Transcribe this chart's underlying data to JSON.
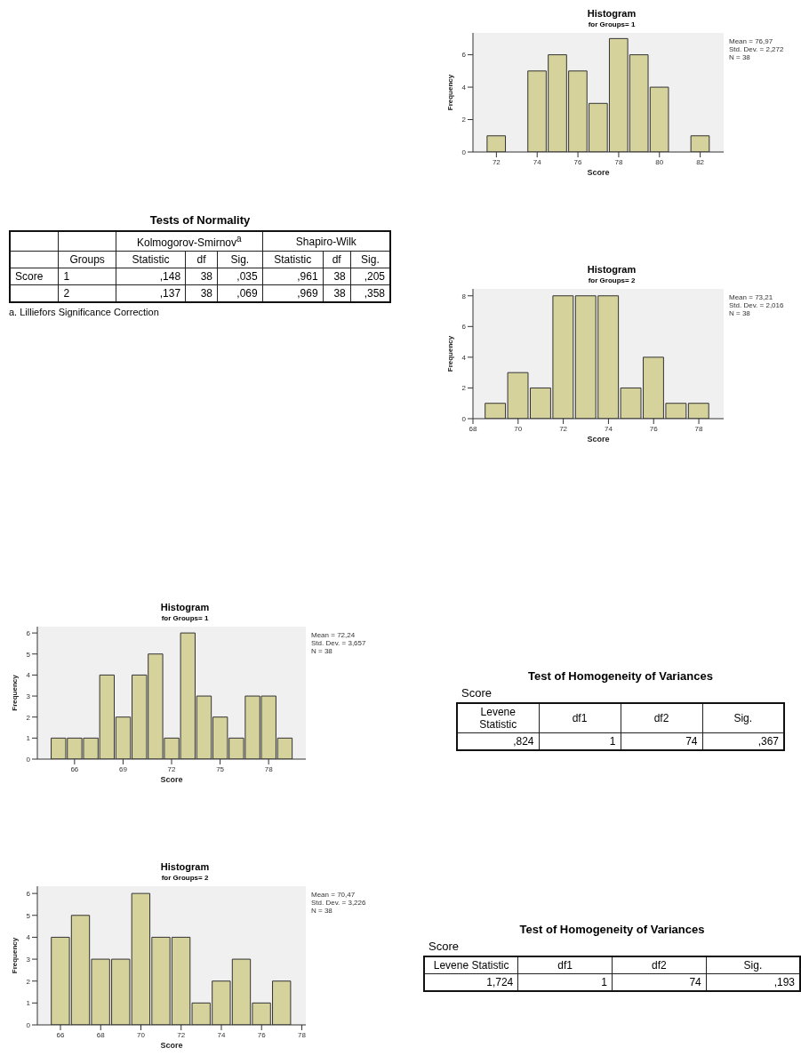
{
  "chart_data": [
    {
      "type": "histogram",
      "title": "Histogram",
      "subtitle": "for Groups= 1",
      "xlabel": "Score",
      "ylabel": "Frequency",
      "bins": [
        71.5,
        72.5,
        73.5,
        74.5,
        75.5,
        76.5,
        77.5,
        78.5,
        79.5,
        80.5,
        81.5,
        82.5
      ],
      "values": [
        1,
        0,
        5,
        6,
        5,
        3,
        7,
        6,
        4,
        0,
        1
      ],
      "color": "#d6d29c",
      "xlim": [
        70.85,
        83.15
      ],
      "xticks": [
        72,
        74,
        76,
        78,
        80,
        82
      ],
      "ylim": [
        0,
        7.35
      ],
      "yticks": [
        0,
        2,
        4,
        6
      ],
      "grid": false,
      "annotations": [
        "Mean = 76,97",
        "Std. Dev. = 2,272",
        "N = 38"
      ]
    },
    {
      "type": "other",
      "title": "Tests of Normality",
      "cells": [
        [
          null,
          null,
          "Kolmogorov-Smirnov$^{a}$",
          null,
          null,
          "Shapiro-Wilk",
          null,
          null
        ],
        [
          null,
          "Groups",
          "Statistic",
          "df",
          "Sig.",
          "Statistic",
          "df",
          "Sig."
        ],
        [
          "Score",
          "1",
          ",148",
          "38",
          ",035",
          ",961",
          "38",
          ",205"
        ],
        [
          null,
          "2",
          ",137",
          "38",
          ",069",
          ",969",
          "38",
          ",358"
        ]
      ],
      "annotations": [
        "a. Lilliefors Significance Correction"
      ]
    },
    {
      "type": "histogram",
      "title": "Histogram",
      "subtitle": "for Groups= 2",
      "xlabel": "Score",
      "ylabel": "Frequency",
      "bins": [
        68.5,
        69.5,
        70.5,
        71.5,
        72.5,
        73.5,
        74.5,
        75.5,
        76.5,
        77.5,
        78.5
      ],
      "values": [
        1,
        3,
        2,
        8,
        8,
        8,
        2,
        4,
        1,
        1
      ],
      "color": "#d6d29c",
      "xlim": [
        68,
        79.1
      ],
      "xticks": [
        68,
        70,
        72,
        74,
        76,
        78
      ],
      "ylim": [
        0,
        8.45
      ],
      "yticks": [
        0,
        2,
        4,
        6,
        8
      ],
      "grid": false,
      "annotations": [
        "Mean = 73,21",
        "Std. Dev. = 2,016",
        "N = 38"
      ]
    },
    {
      "type": "histogram",
      "title": "Histogram",
      "subtitle": "for Groups= 1",
      "xlabel": "Score",
      "ylabel": "Frequency",
      "bins": [
        64.5,
        65.5,
        66.5,
        67.5,
        68.5,
        69.5,
        70.5,
        71.5,
        72.5,
        73.5,
        74.5,
        75.5,
        76.5,
        77.5,
        78.5,
        79.5
      ],
      "values": [
        1,
        1,
        1,
        4,
        2,
        4,
        5,
        1,
        6,
        3,
        2,
        1,
        3,
        3,
        1
      ],
      "color": "#d6d29c",
      "xlim": [
        63.7,
        80.3
      ],
      "xticks": [
        66,
        69,
        72,
        75,
        78
      ],
      "ylim": [
        0,
        6.3
      ],
      "yticks": [
        0,
        1,
        2,
        3,
        4,
        5,
        6
      ],
      "grid": false,
      "annotations": [
        "Mean = 72,24",
        "Std. Dev. = 3,657",
        "N = 38"
      ]
    },
    {
      "type": "other",
      "title": "Test of Homogeneity of Variances",
      "subtitle": "Score",
      "cells": [
        [
          "Levene Statistic",
          "df1",
          "df2",
          "Sig."
        ],
        [
          ",824",
          "1",
          "74",
          ",367"
        ]
      ]
    },
    {
      "type": "histogram",
      "title": "Histogram",
      "subtitle": "for Groups= 2",
      "xlabel": "Score",
      "ylabel": "Frequency",
      "bins": [
        65.5,
        66.5,
        67.5,
        68.5,
        69.5,
        70.5,
        71.5,
        72.5,
        73.5,
        74.5,
        75.5,
        76.5,
        77.5
      ],
      "values": [
        4,
        5,
        3,
        3,
        6,
        4,
        4,
        1,
        2,
        3,
        1,
        2
      ],
      "color": "#d6d29c",
      "xlim": [
        64.85,
        78.2
      ],
      "xticks": [
        66,
        68,
        70,
        72,
        74,
        76,
        78
      ],
      "ylim": [
        0,
        6.33
      ],
      "yticks": [
        0,
        1,
        2,
        3,
        4,
        5,
        6
      ],
      "grid": false,
      "annotations": [
        "Mean = 70,47",
        "Std. Dev. = 3,226",
        "N = 38"
      ]
    },
    {
      "type": "other",
      "title": "Test of Homogeneity of Variances",
      "subtitle": "Score",
      "cells": [
        [
          "Levene Statistic",
          "df1",
          "df2",
          "Sig."
        ],
        [
          "1,724",
          "1",
          "74",
          ",193"
        ]
      ]
    }
  ]
}
